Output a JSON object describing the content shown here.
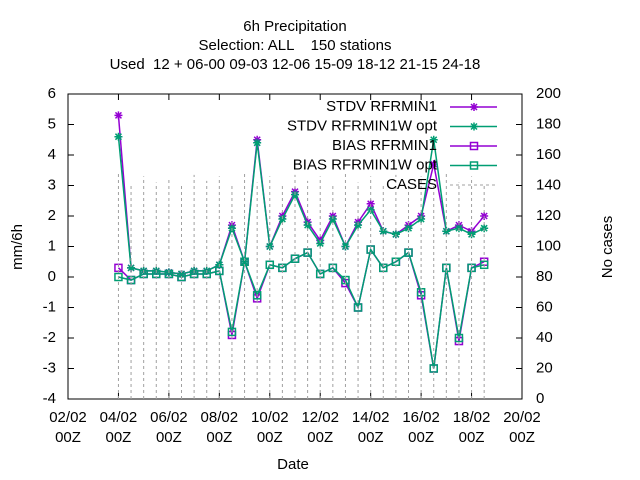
{
  "chart_data": {
    "type": "line",
    "title": "6h Precipitation",
    "subtitle": "Selection: ALL    150 stations",
    "subtitle2": "Used  12 + 06-00 09-03 12-06 15-09 18-12 21-15 24-18",
    "xlabel": "Date",
    "ylabel": "mm/6h",
    "y2label": "No cases",
    "xlim": [
      "02/02 00Z",
      "20/02 00Z"
    ],
    "xticks": [
      "02/02 00Z",
      "04/02 00Z",
      "06/02 00Z",
      "08/02 00Z",
      "10/02 00Z",
      "12/02 00Z",
      "14/02 00Z",
      "16/02 00Z",
      "18/02 00Z",
      "20/02 00Z"
    ],
    "ylim": [
      -4,
      6
    ],
    "yticks": [
      -4,
      -3,
      -2,
      -1,
      0,
      1,
      2,
      3,
      4,
      5,
      6
    ],
    "y2lim": [
      0,
      200
    ],
    "y2ticks": [
      0,
      20,
      40,
      60,
      80,
      100,
      120,
      140,
      160,
      180,
      200
    ],
    "legend": "top-right",
    "x": [
      "04/02 00Z",
      "04/02 12Z",
      "05/02 00Z",
      "05/02 12Z",
      "06/02 00Z",
      "06/02 12Z",
      "07/02 00Z",
      "07/02 12Z",
      "08/02 00Z",
      "08/02 12Z",
      "09/02 00Z",
      "09/02 12Z",
      "10/02 00Z",
      "10/02 12Z",
      "11/02 00Z",
      "11/02 12Z",
      "12/02 00Z",
      "12/02 12Z",
      "13/02 00Z",
      "13/02 12Z",
      "14/02 00Z",
      "14/02 12Z",
      "15/02 00Z",
      "15/02 12Z",
      "16/02 00Z",
      "16/02 12Z",
      "17/02 00Z",
      "17/02 12Z",
      "18/02 00Z",
      "18/02 12Z"
    ],
    "series": [
      {
        "name": "STDV RFRMIN1",
        "color": "#9400d3",
        "marker": "star",
        "values": [
          5.3,
          0.3,
          0.2,
          0.2,
          0.15,
          0.1,
          0.2,
          0.2,
          0.4,
          1.7,
          0.5,
          4.5,
          1.0,
          2.0,
          2.8,
          1.8,
          1.2,
          2.0,
          1.0,
          1.8,
          2.4,
          1.5,
          1.4,
          1.7,
          2.0,
          3.7,
          1.5,
          1.7,
          1.5,
          2.0
        ]
      },
      {
        "name": "STDV RFRMIN1W opt",
        "color": "#009e73",
        "marker": "star",
        "values": [
          4.6,
          0.3,
          0.2,
          0.2,
          0.15,
          0.1,
          0.2,
          0.2,
          0.4,
          1.6,
          0.5,
          4.4,
          1.0,
          1.9,
          2.7,
          1.7,
          1.1,
          1.9,
          1.0,
          1.7,
          2.2,
          1.5,
          1.4,
          1.6,
          1.9,
          4.5,
          1.5,
          1.6,
          1.4,
          1.6
        ]
      },
      {
        "name": "BIAS RFRMIN1",
        "color": "#9400d3",
        "marker": "square",
        "values": [
          0.3,
          -0.1,
          0.1,
          0.1,
          0.1,
          0.0,
          0.1,
          0.1,
          0.2,
          -1.9,
          0.5,
          -0.7,
          0.4,
          0.3,
          0.6,
          0.8,
          0.1,
          0.3,
          -0.2,
          -1.0,
          0.9,
          0.3,
          0.5,
          0.8,
          -0.6,
          -3.0,
          0.3,
          -2.1,
          0.3,
          0.5
        ]
      },
      {
        "name": "BIAS RFRMIN1W opt",
        "color": "#009e73",
        "marker": "square",
        "values": [
          0.0,
          -0.1,
          0.1,
          0.1,
          0.1,
          0.0,
          0.1,
          0.1,
          0.2,
          -1.8,
          0.5,
          -0.6,
          0.4,
          0.3,
          0.6,
          0.8,
          0.1,
          0.3,
          -0.1,
          -1.0,
          0.9,
          0.3,
          0.5,
          0.8,
          -0.5,
          -3.0,
          0.3,
          -2.0,
          0.3,
          0.4
        ]
      },
      {
        "name": "CASES",
        "color": "#a0a0a0",
        "axis": "y2",
        "style": "impulses",
        "values": [
          148,
          140,
          146,
          142,
          145,
          141,
          147,
          143,
          146,
          140,
          148,
          142,
          146,
          141,
          147,
          143,
          146,
          140,
          148,
          142,
          146,
          141,
          147,
          143,
          146,
          140,
          148,
          142,
          146,
          141
        ]
      }
    ]
  }
}
